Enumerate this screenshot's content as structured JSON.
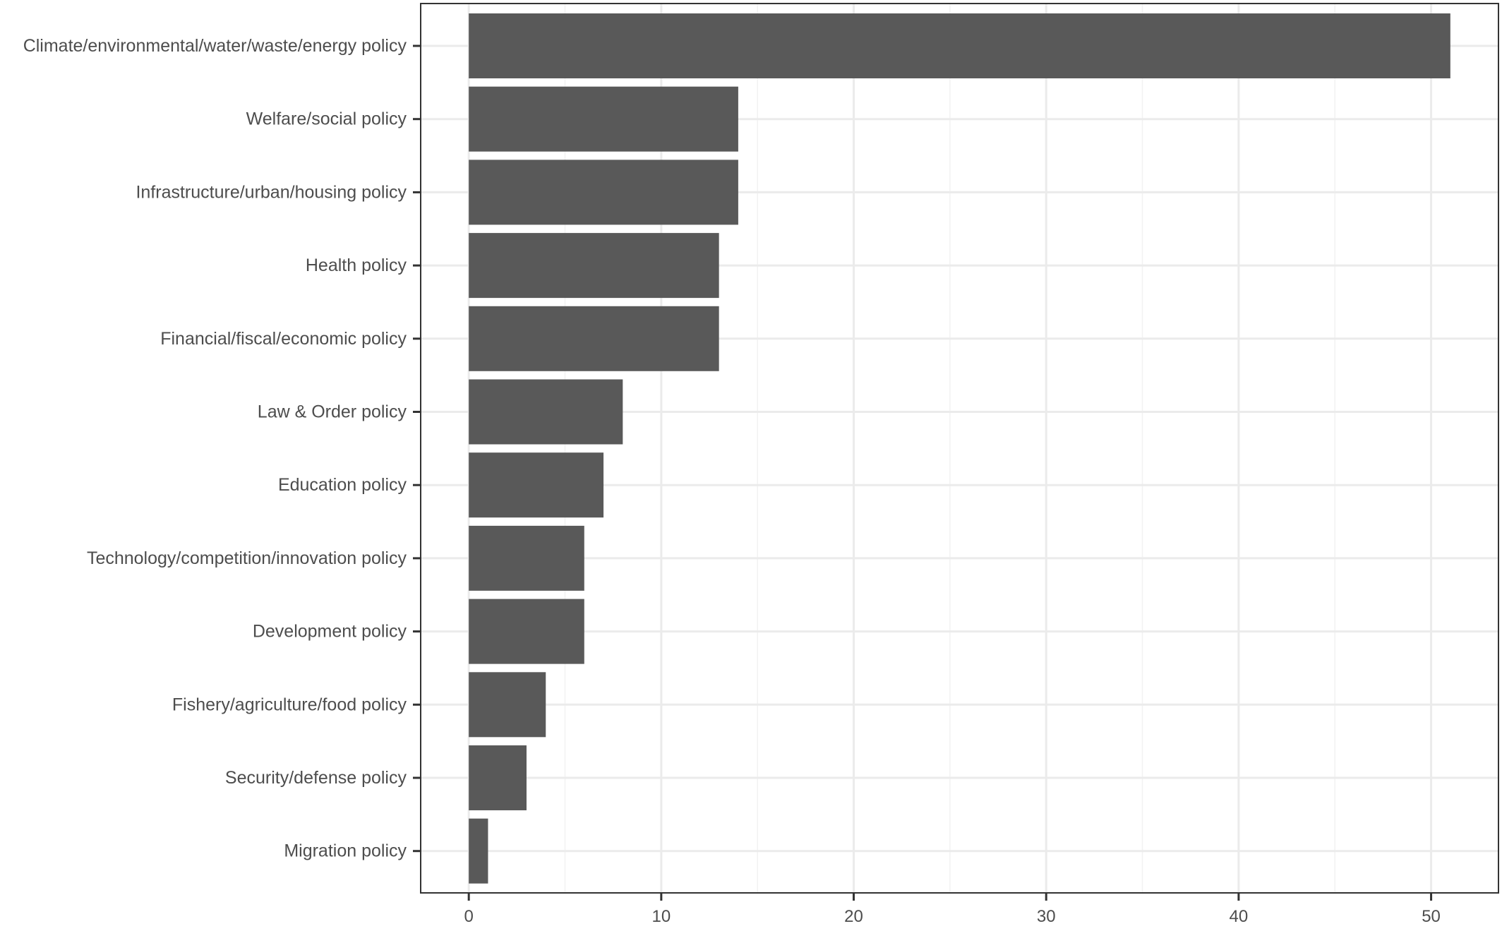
{
  "chart_data": {
    "type": "bar",
    "orientation": "horizontal",
    "categories": [
      "Climate/environmental/water/waste/energy policy",
      "Welfare/social policy",
      "Infrastructure/urban/housing policy",
      "Health policy",
      "Financial/fiscal/economic policy",
      "Law & Order policy",
      "Education policy",
      "Technology/competition/innovation policy",
      "Development policy",
      "Fishery/agriculture/food policy",
      "Security/defense policy",
      "Migration policy"
    ],
    "values": [
      51,
      14,
      14,
      13,
      13,
      8,
      7,
      6,
      6,
      4,
      3,
      1
    ],
    "x_ticks": [
      "0",
      "10",
      "20",
      "30",
      "40",
      "50"
    ],
    "xlim": [
      -2.5,
      53.5
    ],
    "title": "",
    "xlabel": "",
    "ylabel": "",
    "grid": true,
    "legend": "none",
    "colors": {
      "bar": "#595959",
      "background": "#ffffff",
      "grid_major": "#ebebeb",
      "grid_minor": "#f2f2f2",
      "axis_text": "#4d4d4d",
      "border": "#333333"
    }
  }
}
